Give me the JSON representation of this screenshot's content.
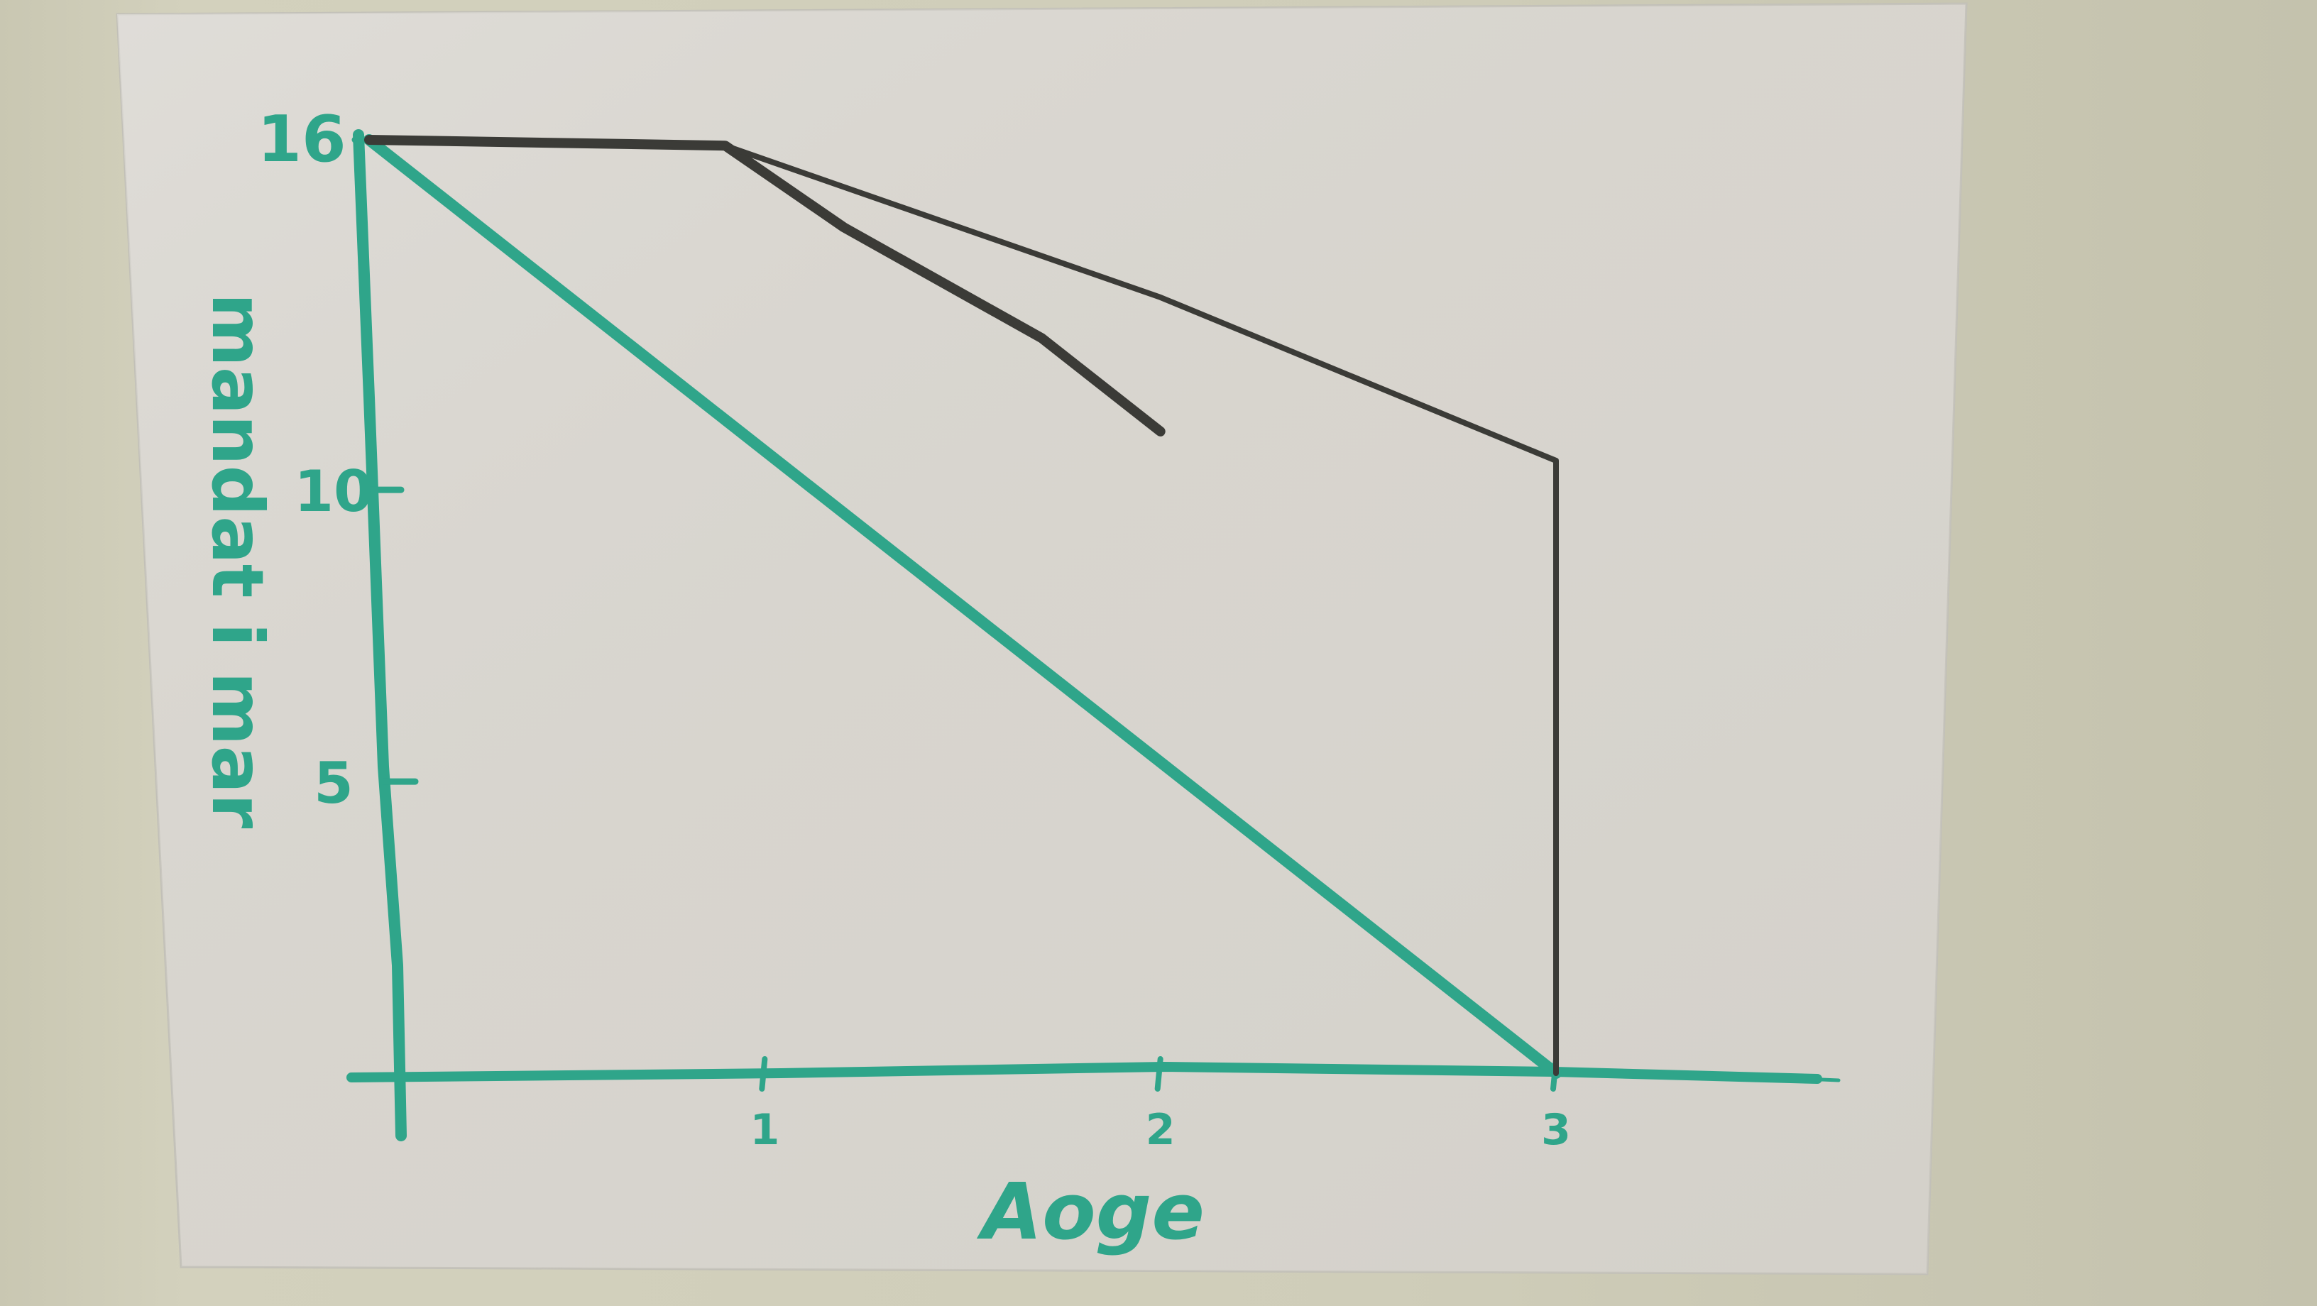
{
  "chart_data": {
    "type": "line",
    "xlabel": "Aoge",
    "ylabel": "mandat i mar",
    "x_ticks": [
      "1",
      "2",
      "3"
    ],
    "y_ticks": [
      "5",
      "10",
      "16"
    ],
    "xlim": [
      0,
      3.7
    ],
    "ylim": [
      0,
      16
    ],
    "grid": false,
    "legend": "none",
    "colors": {
      "axes": "#2fa58a",
      "teal_series": "#2fa58a",
      "dark_series": "#3b3b37"
    },
    "series": [
      {
        "color": "#2fa58a",
        "x": [
          0,
          3
        ],
        "y": [
          16,
          0
        ]
      },
      {
        "color": "#3b3b37",
        "x": [
          0,
          0.9,
          1.2,
          1.7,
          2.0
        ],
        "y": [
          16,
          15.9,
          14.5,
          12.6,
          11.0
        ]
      },
      {
        "color": "#3b3b37",
        "x": [
          0,
          0.9,
          2.0,
          3.0,
          3.0
        ],
        "y": [
          16,
          15.9,
          13.3,
          10.5,
          0
        ]
      }
    ]
  }
}
